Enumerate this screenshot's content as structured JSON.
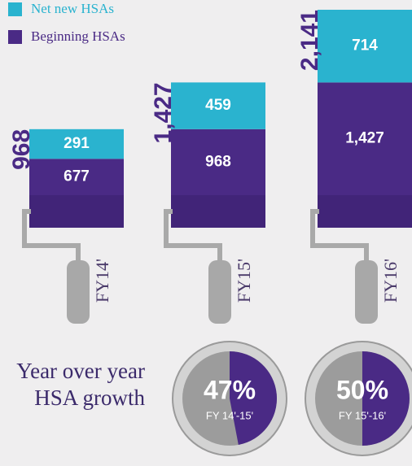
{
  "chart_data": [
    {
      "type": "stacked-bar",
      "categories": [
        "FY14'",
        "FY15'",
        "FY16'"
      ],
      "series": [
        {
          "name": "Beginning HSAs",
          "color": "#4a2a85",
          "values": [
            677,
            968,
            1427
          ],
          "value_labels": [
            "677",
            "968",
            "1,427"
          ]
        },
        {
          "name": "Net new HSAs",
          "color": "#2ab3cf",
          "values": [
            291,
            459,
            714
          ]
        }
      ],
      "total_labels": [
        "968",
        "1,427",
        "2,141"
      ]
    },
    {
      "type": "pie",
      "title": "Year over year HSA growth",
      "categories": [
        "FY 14'-15'",
        "FY 15'-16'"
      ],
      "values": [
        47,
        50
      ],
      "value_labels": [
        "47%",
        "50%"
      ],
      "color": "#4a2a85"
    }
  ]
}
